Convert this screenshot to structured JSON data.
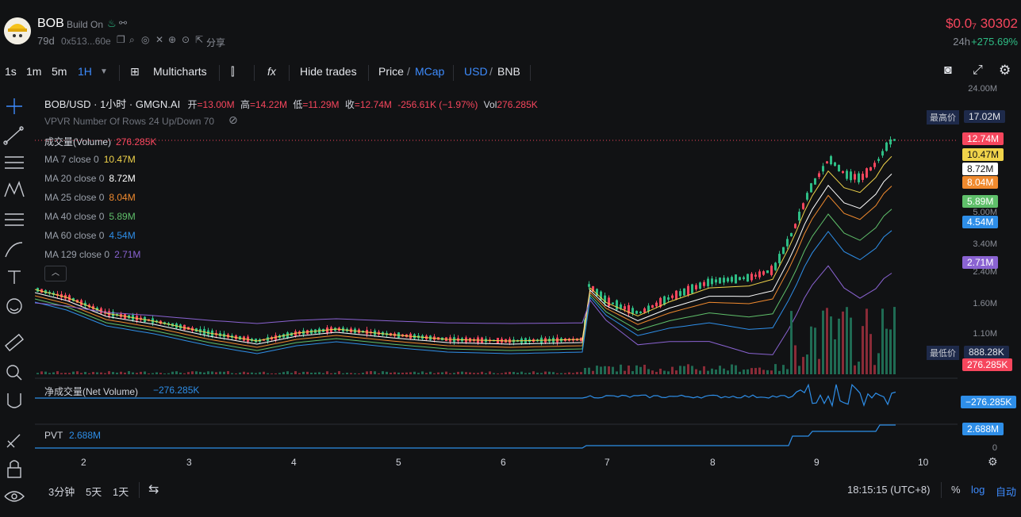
{
  "header": {
    "token_symbol": "BOB",
    "platform": "Build On",
    "age": "79d",
    "address": "0x513...60e",
    "share": "分享",
    "price": "$0.0₇ 30302",
    "change_period": "24h",
    "change": "+275.69%",
    "price_color": "#f6465d",
    "change_color": "#2ebd85"
  },
  "toolbar": {
    "intervals": [
      "1s",
      "1m",
      "5m",
      "1H"
    ],
    "active_interval": "1H",
    "multicharts": "Multicharts",
    "hide_trades": "Hide trades",
    "price": "Price",
    "mcap": "MCap",
    "usd": "USD",
    "bnb": "BNB",
    "slash": "/"
  },
  "legend": {
    "pair": "BOB/USD · 1小时 · GMGN.AI",
    "open_label": "开",
    "open": "=13.00M",
    "high_label": "高",
    "high": "=14.22M",
    "low_label": "低",
    "low": "=11.29M",
    "close_label": "收",
    "close": "=12.74M",
    "change": "-256.61K (−1.97%)",
    "vol_label": "Vol",
    "vol": "276.285K",
    "vpvr": "VPVR Number Of Rows 24 Up/Down 70"
  },
  "indicators": [
    {
      "label": "成交量(Volume)",
      "value": "276.285K",
      "color": "#f6465d"
    },
    {
      "label": "MA 7 close 0",
      "value": "10.47M",
      "color": "#f0d34a"
    },
    {
      "label": "MA 20 close 0",
      "value": "8.72M",
      "color": "#ffffff"
    },
    {
      "label": "MA 25 close 0",
      "value": "8.04M",
      "color": "#f08a2e"
    },
    {
      "label": "MA 40 close 0",
      "value": "5.89M",
      "color": "#5fbf6a"
    },
    {
      "label": "MA 60 close 0",
      "value": "4.54M",
      "color": "#2e8ee8"
    },
    {
      "label": "MA 129 close 0",
      "value": "2.71M",
      "color": "#8a63d2"
    }
  ],
  "subpanes": {
    "net_volume_label": "净成交量(Net Volume)",
    "net_volume_value": "−276.285K",
    "pvt_label": "PVT",
    "pvt_value": "2.688M"
  },
  "y_axis": {
    "ticks": [
      "24.00M",
      "5.00M",
      "3.40M",
      "2.40M",
      "1.60M",
      "1.10M",
      "0"
    ],
    "high_tag_label": "最高价",
    "high_tag_value": "17.02M",
    "low_tag_label": "最低价",
    "low_tag_value": "888.28K",
    "tags": [
      {
        "value": "12.74M",
        "color": "#f6465d",
        "text": "#ffffff"
      },
      {
        "value": "10.47M",
        "color": "#f0d34a",
        "text": "#111111"
      },
      {
        "value": "8.72M",
        "color": "#ffffff",
        "text": "#111111"
      },
      {
        "value": "8.04M",
        "color": "#f08a2e",
        "text": "#ffffff"
      },
      {
        "value": "5.89M",
        "color": "#5fbf6a",
        "text": "#ffffff"
      },
      {
        "value": "4.54M",
        "color": "#2e8ee8",
        "text": "#ffffff"
      },
      {
        "value": "2.71M",
        "color": "#8a63d2",
        "text": "#ffffff"
      }
    ],
    "vol_tag": "276.285K",
    "net_tag": "−276.285K",
    "pvt_tag": "2.688M"
  },
  "x_axis": {
    "ticks": [
      "2",
      "3",
      "4",
      "5",
      "6",
      "7",
      "8",
      "9",
      "10"
    ]
  },
  "bottom": {
    "ranges": [
      "3分钟",
      "5天",
      "1天"
    ],
    "time": "18:15:15 (UTC+8)",
    "percent": "%",
    "log": "log",
    "auto": "自动"
  },
  "chart_data": {
    "type": "candlestick",
    "x_ticks": [
      "2",
      "3",
      "4",
      "5",
      "6",
      "7",
      "8",
      "9",
      "10"
    ],
    "last_close": "12.74M",
    "high": "17.02M",
    "low": "888.28K",
    "series": [
      {
        "name": "MA 7 close 0",
        "last": "10.47M"
      },
      {
        "name": "MA 20 close 0",
        "last": "8.72M"
      },
      {
        "name": "MA 25 close 0",
        "last": "8.04M"
      },
      {
        "name": "MA 40 close 0",
        "last": "5.89M"
      },
      {
        "name": "MA 60 close 0",
        "last": "4.54M"
      },
      {
        "name": "MA 129 close 0",
        "last": "2.71M"
      }
    ],
    "log_scale": true
  }
}
